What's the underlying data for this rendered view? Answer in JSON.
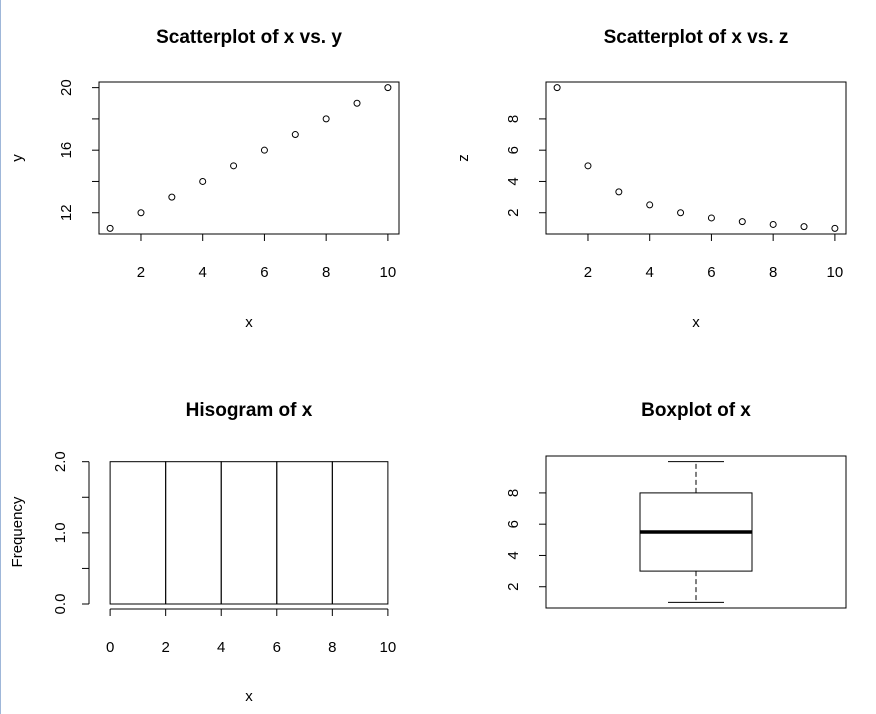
{
  "chart_data": [
    {
      "type": "scatter",
      "title": "Scatterplot of x vs. y",
      "xlabel": "x",
      "ylabel": "y",
      "x": [
        1,
        2,
        3,
        4,
        5,
        6,
        7,
        8,
        9,
        10
      ],
      "y": [
        11,
        12,
        13,
        14,
        15,
        16,
        17,
        18,
        19,
        20
      ],
      "xlim": [
        0.64,
        10.36
      ],
      "ylim": [
        10.64,
        20.36
      ],
      "xticks": [
        2,
        4,
        6,
        8,
        10
      ],
      "xtick_labels": [
        "2",
        "4",
        "6",
        "8",
        "10"
      ],
      "yticks": [
        12,
        14,
        16,
        18,
        20
      ],
      "ytick_labels": [
        "12",
        "",
        "16",
        "",
        "20"
      ]
    },
    {
      "type": "scatter",
      "title": "Scatterplot of x vs. z",
      "xlabel": "x",
      "ylabel": "z",
      "x": [
        1,
        2,
        3,
        4,
        5,
        6,
        7,
        8,
        9,
        10
      ],
      "y": [
        10,
        5,
        3.333,
        2.5,
        2,
        1.667,
        1.429,
        1.25,
        1.111,
        1
      ],
      "xlim": [
        0.64,
        10.36
      ],
      "ylim": [
        0.64,
        10.36
      ],
      "xticks": [
        2,
        4,
        6,
        8,
        10
      ],
      "xtick_labels": [
        "2",
        "4",
        "6",
        "8",
        "10"
      ],
      "yticks": [
        2,
        4,
        6,
        8
      ],
      "ytick_labels": [
        "2",
        "4",
        "6",
        "8"
      ]
    },
    {
      "type": "bar",
      "title": "Hisogram of x",
      "xlabel": "x",
      "ylabel": "Frequency",
      "bins": [
        [
          0,
          2
        ],
        [
          2,
          4
        ],
        [
          4,
          6
        ],
        [
          6,
          8
        ],
        [
          8,
          10
        ]
      ],
      "values": [
        2,
        2,
        2,
        2,
        2
      ],
      "xlim": [
        -0.4,
        10.4
      ],
      "ylim": [
        0,
        2.08
      ],
      "xticks": [
        0,
        2,
        4,
        6,
        8,
        10
      ],
      "xtick_labels": [
        "0",
        "2",
        "4",
        "6",
        "8",
        "10"
      ],
      "yticks": [
        0,
        0.5,
        1,
        1.5,
        2
      ],
      "ytick_labels": [
        "0.0",
        "",
        "1.0",
        "",
        "2.0"
      ]
    },
    {
      "type": "box",
      "title": "Boxplot of x",
      "stats": {
        "min": 1,
        "q1": 3,
        "median": 5.5,
        "q3": 8,
        "max": 10
      },
      "ylim": [
        0.64,
        10.36
      ],
      "yticks": [
        2,
        4,
        6,
        8
      ],
      "ytick_labels": [
        "2",
        "4",
        "6",
        "8"
      ]
    }
  ]
}
